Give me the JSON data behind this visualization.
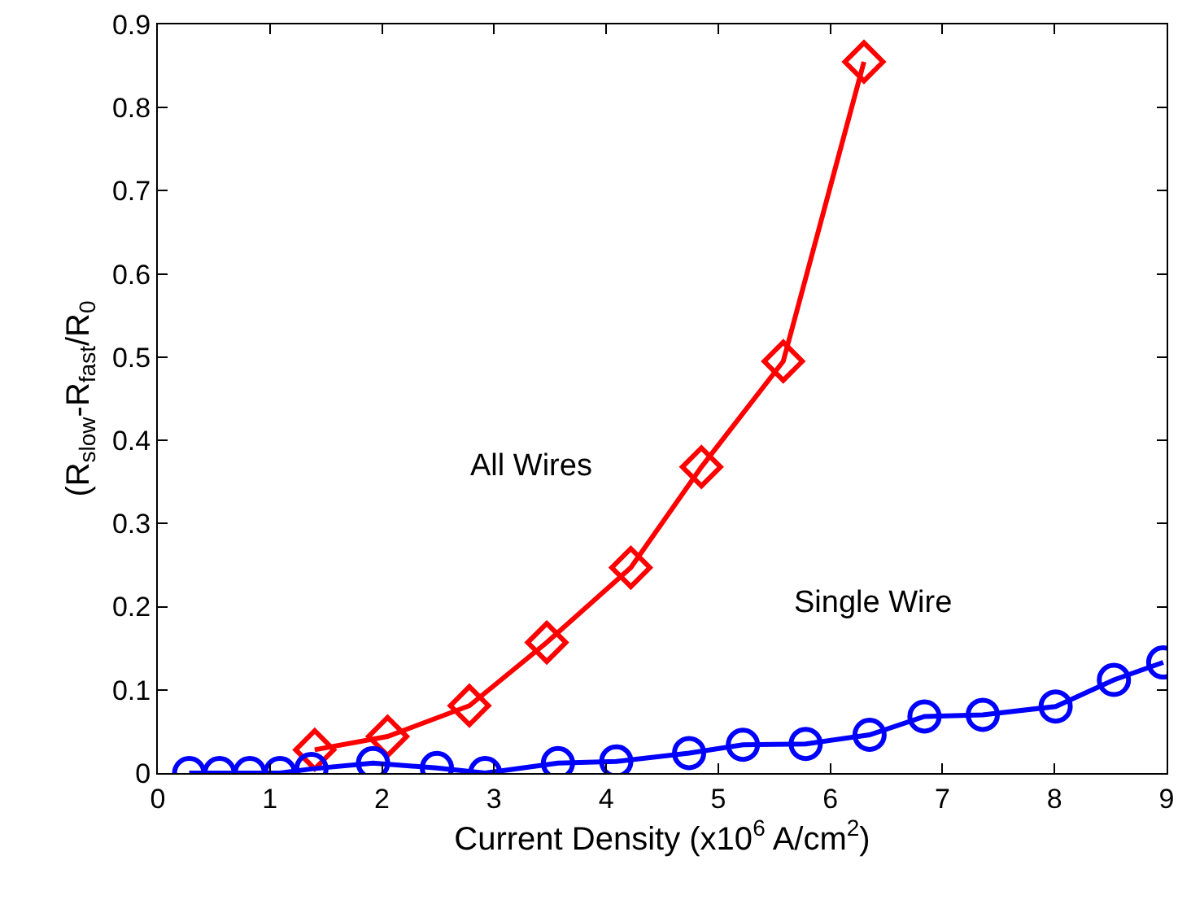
{
  "chart_data": {
    "type": "line",
    "xlabel": "Current Density (x10$^{6}$ A/cm$^{2}$)",
    "ylabel": "(R$_{slow}$-R$_{fast}$/R$_{0}$",
    "xlim": [
      0,
      9
    ],
    "xticks": [
      0,
      1,
      2,
      3,
      4,
      5,
      6,
      7,
      8,
      9
    ],
    "ylim": [
      0,
      0.9
    ],
    "yticks": [
      0,
      0.1,
      0.2,
      0.3,
      0.4,
      0.5,
      0.6,
      0.7,
      0.8,
      0.9
    ],
    "grid": false,
    "legend": false,
    "series": [
      {
        "name": "All Wires",
        "color": "#ff0000",
        "marker": "diamond",
        "x": [
          1.4,
          2.05,
          2.78,
          3.47,
          4.22,
          4.85,
          5.58,
          6.3
        ],
        "values": [
          0.028,
          0.044,
          0.081,
          0.157,
          0.247,
          0.368,
          0.495,
          0.855
        ]
      },
      {
        "name": "Single Wire",
        "color": "#0000ff",
        "marker": "circle",
        "x": [
          0.28,
          0.55,
          0.82,
          1.09,
          1.37,
          1.92,
          2.49,
          2.92,
          3.57,
          4.09,
          4.74,
          5.22,
          5.78,
          6.35,
          6.84,
          7.36,
          8.01,
          8.53,
          8.97
        ],
        "values": [
          0,
          0,
          0,
          0,
          0.005,
          0.012,
          0.006,
          0,
          0.012,
          0.014,
          0.024,
          0.034,
          0.035,
          0.046,
          0.068,
          0.07,
          0.08,
          0.112,
          0.133
        ]
      }
    ]
  }
}
